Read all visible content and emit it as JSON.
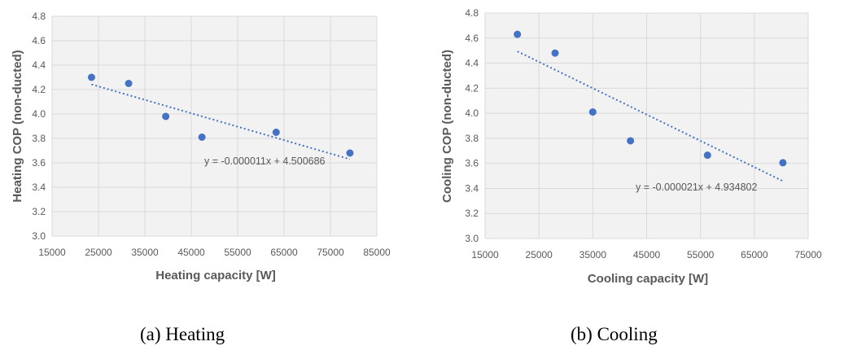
{
  "chart_data": [
    {
      "type": "scatter",
      "title": "",
      "xlabel": "Heating capacity [W]",
      "ylabel": "Heating COP (non-ducted)",
      "xlim": [
        15000,
        85000
      ],
      "ylim": [
        3.0,
        4.8
      ],
      "x_ticks": [
        "15000",
        "25000",
        "35000",
        "45000",
        "55000",
        "65000",
        "75000",
        "85000"
      ],
      "y_ticks": [
        "3.0",
        "3.2",
        "3.4",
        "3.6",
        "3.8",
        "4.0",
        "4.2",
        "4.4",
        "4.6",
        "4.8"
      ],
      "grid": true,
      "series": [
        {
          "x": [
            23500,
            31500,
            39500,
            47300,
            63300,
            79200
          ],
          "y": [
            4.3,
            4.25,
            3.98,
            3.81,
            3.85,
            3.68
          ]
        }
      ],
      "trendline": {
        "type": "linear",
        "slope": -1.1e-05,
        "intercept": 4.500686,
        "equation": "y = -0.000011x + 4.500686"
      },
      "colors": {
        "marker": "#4472c4",
        "trendline": "#4472c4",
        "grid": "#d9d9d9"
      }
    },
    {
      "type": "scatter",
      "title": "",
      "xlabel": "Cooling capacity [W]",
      "ylabel": "Cooling COP (non-ducted)",
      "xlim": [
        15000,
        75000
      ],
      "ylim": [
        3.0,
        4.8
      ],
      "x_ticks": [
        "15000",
        "25000",
        "35000",
        "45000",
        "55000",
        "65000",
        "75000"
      ],
      "y_ticks": [
        "3.0",
        "3.2",
        "3.4",
        "3.6",
        "3.8",
        "4.0",
        "4.2",
        "4.4",
        "4.6",
        "4.8"
      ],
      "grid": true,
      "series": [
        {
          "x": [
            21000,
            28000,
            35000,
            42000,
            56300,
            70300
          ],
          "y": [
            4.63,
            4.48,
            4.01,
            3.78,
            3.665,
            3.605
          ]
        }
      ],
      "trendline": {
        "type": "linear",
        "slope": -2.1e-05,
        "intercept": 4.934802,
        "equation": "y = -0.000021x + 4.934802"
      },
      "colors": {
        "marker": "#4472c4",
        "trendline": "#4472c4",
        "grid": "#d9d9d9"
      }
    }
  ],
  "captions": [
    "(a) Heating",
    "(b) Cooling"
  ]
}
